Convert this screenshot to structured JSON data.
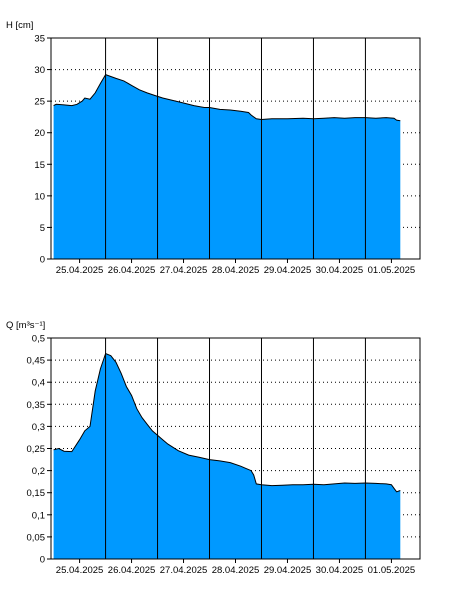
{
  "chart_data": [
    {
      "type": "area",
      "ylabel": "H [cm]",
      "ylim": [
        0,
        35
      ],
      "yticks": [
        "0",
        "5",
        "10",
        "15",
        "20",
        "25",
        "30",
        "35"
      ],
      "x_tick_labels": [
        "25.04.2025",
        "26.04.2025",
        "27.04.2025",
        "28.04.2025",
        "29.04.2025",
        "30.04.2025",
        "01.05.2025"
      ],
      "xlim": [
        -0.05,
        7.05
      ],
      "grid": {
        "horizontal": "dotted",
        "vertical": "solid"
      },
      "fill_color": "#0099ff",
      "line_color": "#000000",
      "x": [
        0.0,
        0.05,
        0.2,
        0.35,
        0.45,
        0.55,
        0.6,
        0.7,
        0.8,
        0.9,
        1.0,
        1.1,
        1.2,
        1.35,
        1.5,
        1.65,
        1.8,
        1.95,
        2.1,
        2.3,
        2.5,
        2.7,
        2.9,
        3.0,
        3.2,
        3.4,
        3.6,
        3.75,
        3.8,
        3.9,
        4.0,
        4.2,
        4.5,
        4.8,
        5.0,
        5.2,
        5.4,
        5.6,
        5.8,
        6.0,
        6.2,
        6.4,
        6.55,
        6.6,
        6.67
      ],
      "y": [
        24.3,
        24.5,
        24.4,
        24.3,
        24.5,
        25.0,
        25.5,
        25.3,
        26.3,
        27.8,
        29.2,
        28.9,
        28.6,
        28.2,
        27.5,
        26.8,
        26.3,
        25.9,
        25.5,
        25.1,
        24.7,
        24.3,
        24.0,
        24.0,
        23.7,
        23.6,
        23.4,
        23.2,
        22.8,
        22.2,
        22.1,
        22.2,
        22.2,
        22.3,
        22.2,
        22.3,
        22.4,
        22.3,
        22.4,
        22.4,
        22.3,
        22.4,
        22.3,
        22.0,
        21.9
      ]
    },
    {
      "type": "area",
      "ylabel": "Q [m³s⁻¹]",
      "ylim": [
        0,
        0.5
      ],
      "yticks": [
        "0",
        "0,05",
        "0,1",
        "0,15",
        "0,2",
        "0,25",
        "0,3",
        "0,35",
        "0,4",
        "0,45",
        "0,5"
      ],
      "x_tick_labels": [
        "25.04.2025",
        "26.04.2025",
        "27.04.2025",
        "28.04.2025",
        "29.04.2025",
        "30.04.2025",
        "01.05.2025"
      ],
      "xlim": [
        -0.05,
        7.05
      ],
      "grid": {
        "horizontal": "dotted",
        "vertical": "solid"
      },
      "fill_color": "#0099ff",
      "line_color": "#000000",
      "x": [
        0.0,
        0.1,
        0.2,
        0.35,
        0.5,
        0.6,
        0.7,
        0.8,
        0.9,
        1.0,
        1.1,
        1.2,
        1.3,
        1.4,
        1.5,
        1.6,
        1.7,
        1.8,
        1.9,
        2.0,
        2.1,
        2.2,
        2.4,
        2.6,
        2.8,
        3.0,
        3.2,
        3.4,
        3.6,
        3.7,
        3.8,
        3.85,
        3.9,
        4.0,
        4.2,
        4.4,
        4.6,
        4.8,
        5.0,
        5.2,
        5.4,
        5.6,
        5.8,
        6.0,
        6.2,
        6.4,
        6.5,
        6.55,
        6.6,
        6.67
      ],
      "y": [
        0.247,
        0.25,
        0.244,
        0.243,
        0.27,
        0.29,
        0.3,
        0.38,
        0.43,
        0.465,
        0.46,
        0.445,
        0.42,
        0.39,
        0.37,
        0.34,
        0.32,
        0.305,
        0.29,
        0.28,
        0.27,
        0.26,
        0.245,
        0.235,
        0.23,
        0.225,
        0.222,
        0.218,
        0.21,
        0.205,
        0.2,
        0.19,
        0.17,
        0.168,
        0.166,
        0.167,
        0.168,
        0.168,
        0.169,
        0.168,
        0.17,
        0.172,
        0.171,
        0.172,
        0.171,
        0.17,
        0.168,
        0.16,
        0.152,
        0.155
      ]
    }
  ]
}
